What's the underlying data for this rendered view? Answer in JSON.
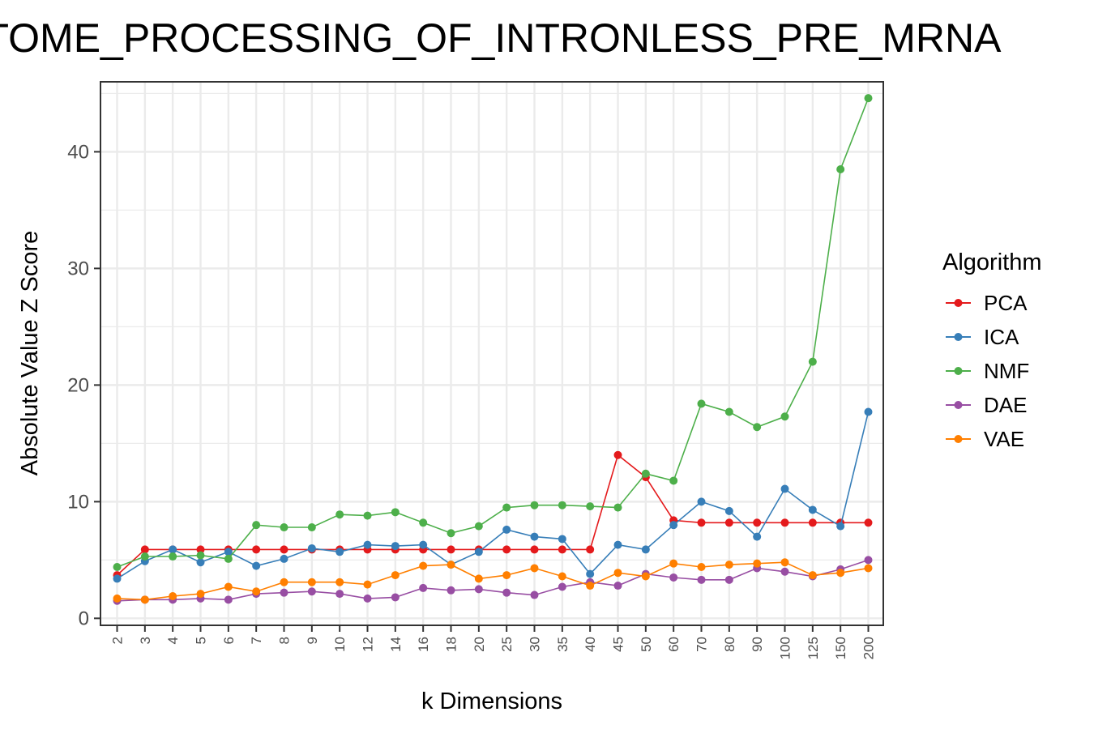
{
  "chart_data": {
    "type": "line",
    "title": "TOME_PROCESSING_OF_INTRONLESS_PRE_MRNA",
    "xlabel": "k Dimensions",
    "ylabel": "Absolute Value Z Score",
    "categories": [
      "2",
      "3",
      "4",
      "5",
      "6",
      "7",
      "8",
      "9",
      "10",
      "12",
      "14",
      "16",
      "18",
      "20",
      "25",
      "30",
      "35",
      "40",
      "45",
      "50",
      "60",
      "70",
      "80",
      "90",
      "100",
      "125",
      "150",
      "200"
    ],
    "ylim": [
      -0.6,
      46
    ],
    "yticks": [
      "0",
      "10",
      "20",
      "30",
      "40"
    ],
    "grid": true,
    "legend_title": "Algorithm",
    "legend_position": "right",
    "series": [
      {
        "name": "PCA",
        "color": "#e41a1c",
        "values": [
          3.7,
          5.9,
          5.9,
          5.9,
          5.9,
          5.9,
          5.9,
          5.9,
          5.9,
          5.9,
          5.9,
          5.9,
          5.9,
          5.9,
          5.9,
          5.9,
          5.9,
          5.9,
          14.0,
          12.1,
          8.4,
          8.2,
          8.2,
          8.2,
          8.2,
          8.2,
          8.2,
          8.2
        ]
      },
      {
        "name": "ICA",
        "color": "#377eb8",
        "values": [
          3.4,
          4.9,
          5.9,
          4.8,
          5.7,
          4.5,
          5.1,
          6.0,
          5.7,
          6.3,
          6.2,
          6.3,
          4.6,
          5.7,
          7.6,
          7.0,
          6.8,
          3.8,
          6.3,
          5.9,
          8.0,
          10.0,
          9.2,
          7.0,
          11.1,
          9.3,
          7.9,
          17.7
        ]
      },
      {
        "name": "NMF",
        "color": "#4daf4a",
        "values": [
          4.4,
          5.3,
          5.3,
          5.4,
          5.1,
          8.0,
          7.8,
          7.8,
          8.9,
          8.8,
          9.1,
          8.2,
          7.3,
          7.9,
          9.5,
          9.7,
          9.7,
          9.6,
          9.5,
          12.4,
          11.8,
          18.4,
          17.7,
          16.4,
          17.3,
          22.0,
          38.5,
          44.6
        ]
      },
      {
        "name": "DAE",
        "color": "#984ea3",
        "values": [
          1.5,
          1.6,
          1.6,
          1.7,
          1.6,
          2.1,
          2.2,
          2.3,
          2.1,
          1.7,
          1.8,
          2.6,
          2.4,
          2.5,
          2.2,
          2.0,
          2.7,
          3.1,
          2.8,
          3.8,
          3.5,
          3.3,
          3.3,
          4.3,
          4.0,
          3.6,
          4.2,
          5.0
        ]
      },
      {
        "name": "VAE",
        "color": "#ff7f00",
        "values": [
          1.7,
          1.6,
          1.9,
          2.1,
          2.7,
          2.3,
          3.1,
          3.1,
          3.1,
          2.9,
          3.7,
          4.5,
          4.6,
          3.4,
          3.7,
          4.3,
          3.6,
          2.8,
          3.9,
          3.6,
          4.7,
          4.4,
          4.6,
          4.7,
          4.8,
          3.7,
          3.9,
          4.3
        ]
      }
    ]
  }
}
